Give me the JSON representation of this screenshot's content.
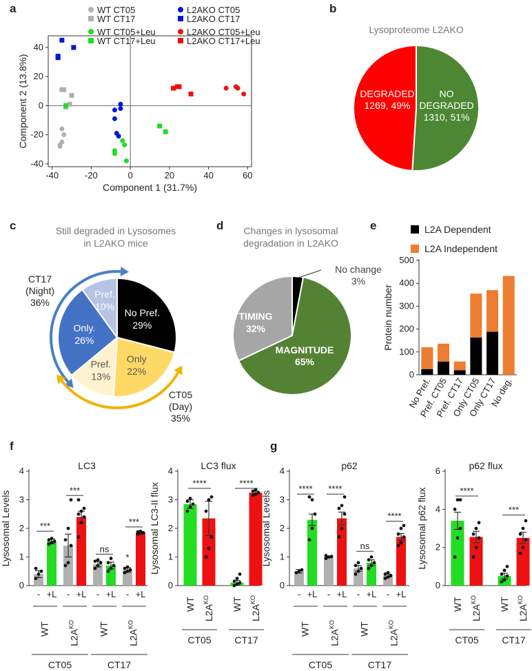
{
  "colors": {
    "wt": "#b0b0b0",
    "ko": "#0018d6",
    "wt_leu": "#22dd22",
    "ko_leu": "#ee1111",
    "degraded": "#ff0000",
    "not_degraded": "#4d8733",
    "black": "#000000",
    "pref_night": "#b5c4e3",
    "only_night": "#4472c4",
    "pref_day": "#fff2cc",
    "only_day": "#ffd966",
    "timing": "#a6a6a6",
    "magnitude": "#548235",
    "l2a_indep": "#ed7d31",
    "arrow_blue": "#4a7fc8",
    "arrow_yellow": "#f0b400"
  },
  "chart_data": [
    {
      "id": "a",
      "panel_label": "a",
      "type": "scatter",
      "title": "",
      "xlabel": "Component 1 (31.7%)",
      "ylabel": "Component 2 (13.8%)",
      "xlim": [
        -42,
        62
      ],
      "ylim": [
        -42,
        48
      ],
      "xticks": [
        -40,
        -20,
        0,
        20,
        40,
        60
      ],
      "yticks": [
        -40,
        -20,
        0,
        20,
        40
      ],
      "xtick_labels": [
        "-40",
        "-20",
        "0",
        "20",
        "40",
        "60"
      ],
      "ytick_labels": [
        "-40",
        "-20",
        "0",
        "20",
        "40"
      ],
      "legend": [
        {
          "label": "WT CT05",
          "color": "wt",
          "marker": "circle"
        },
        {
          "label": "WT CT17",
          "color": "wt",
          "marker": "square"
        },
        {
          "label": "L2AKO CT05",
          "color": "ko",
          "marker": "circle"
        },
        {
          "label": "L2AKO CT17",
          "color": "ko",
          "marker": "square"
        },
        {
          "label": "WT CT05+Leu",
          "color": "wt_leu",
          "marker": "circle"
        },
        {
          "label": "WT CT17+Leu",
          "color": "wt_leu",
          "marker": "square"
        },
        {
          "label": "L2AKO CT05+Leu",
          "color": "ko_leu",
          "marker": "circle"
        },
        {
          "label": "L2AKO CT17+Leu",
          "color": "ko_leu",
          "marker": "square"
        }
      ],
      "series": [
        {
          "name": "WT CT05",
          "color": "wt",
          "marker": "circle",
          "points": [
            [
              -35,
              -16
            ],
            [
              -34,
              -20
            ],
            [
              -35,
              -25
            ],
            [
              -36,
              -27
            ],
            [
              -36,
              -28
            ]
          ]
        },
        {
          "name": "WT CT17",
          "color": "wt",
          "marker": "square",
          "points": [
            [
              -35,
              11
            ],
            [
              -34,
              11
            ],
            [
              -30,
              7
            ],
            [
              -31,
              1
            ],
            [
              -33,
              -1
            ]
          ]
        },
        {
          "name": "L2AKO CT05",
          "color": "ko",
          "marker": "circle",
          "points": [
            [
              -8,
              -3
            ],
            [
              -8,
              -9
            ],
            [
              -5,
              -2
            ],
            [
              -5,
              1
            ],
            [
              -7,
              -19
            ],
            [
              -6,
              -21
            ]
          ]
        },
        {
          "name": "L2AKO CT17",
          "color": "ko",
          "marker": "square",
          "points": [
            [
              -37,
              33
            ],
            [
              -37,
              34
            ],
            [
              -35,
              45
            ],
            [
              -29,
              40
            ]
          ]
        },
        {
          "name": "WT CT05+Leu",
          "color": "wt_leu",
          "marker": "circle",
          "points": [
            [
              -4,
              -24
            ],
            [
              -3,
              -27
            ],
            [
              -8,
              -31
            ],
            [
              -8,
              -33
            ],
            [
              -2,
              -38
            ]
          ]
        },
        {
          "name": "WT CT17+Leu",
          "color": "wt_leu",
          "marker": "square",
          "points": [
            [
              -33,
              0
            ],
            [
              15,
              -14
            ],
            [
              18,
              -18
            ]
          ]
        },
        {
          "name": "L2AKO CT05+Leu",
          "color": "ko_leu",
          "marker": "circle",
          "points": [
            [
              49,
              12
            ],
            [
              54,
              13
            ],
            [
              55,
              12
            ],
            [
              58,
              8
            ]
          ]
        },
        {
          "name": "L2AKO CT17+Leu",
          "color": "ko_leu",
          "marker": "square",
          "points": [
            [
              22,
              12
            ],
            [
              25,
              13
            ],
            [
              24,
              13
            ],
            [
              31,
              8
            ]
          ]
        }
      ]
    },
    {
      "id": "b",
      "panel_label": "b",
      "type": "pie",
      "title": "Lysoproteome L2AKO",
      "slices": [
        {
          "label": "NO\nDEGRADED",
          "value_text": "1310, 51%",
          "value": 51,
          "color": "not_degraded"
        },
        {
          "label": "DEGRADED",
          "value_text": "1269, 49%",
          "value": 49,
          "color": "degraded"
        }
      ]
    },
    {
      "id": "c",
      "panel_label": "c",
      "type": "pie",
      "title": "Still degraded in Lysosomes\nin L2AKO mice",
      "slices": [
        {
          "label": "No Pref.",
          "pct": "29%",
          "value": 29,
          "color": "black",
          "text_color": "#ffffff"
        },
        {
          "label": "Only",
          "pct": "22%",
          "value": 22,
          "color": "only_day",
          "text_color": "#555555"
        },
        {
          "label": "Pref.",
          "pct": "13%",
          "value": 13,
          "color": "pref_day",
          "text_color": "#555555"
        },
        {
          "label": "Only.",
          "pct": "26%",
          "value": 26,
          "color": "only_night",
          "text_color": "#ffffff"
        },
        {
          "label": "Pref.",
          "pct": "10%",
          "value": 10,
          "color": "pref_night",
          "text_color": "#ffffff"
        }
      ],
      "annotations": {
        "night_label": "CT17\n(Night)\n36%",
        "day_label": "CT05\n(Day)\n35%"
      }
    },
    {
      "id": "d",
      "panel_label": "d",
      "type": "pie",
      "title": "Changes in lysosomal\ndegradation in  L2AKO",
      "slices": [
        {
          "label": "No change",
          "pct": "3%",
          "value": 3,
          "color": "black"
        },
        {
          "label": "MAGNITUDE",
          "pct": "65%",
          "value": 65,
          "color": "magnitude"
        },
        {
          "label": "TIMING",
          "pct": "32%",
          "value": 32,
          "color": "timing"
        }
      ]
    },
    {
      "id": "e",
      "panel_label": "e",
      "type": "bar",
      "stacked": true,
      "ylabel": "Protein number",
      "ylim": [
        0,
        500
      ],
      "yticks": [
        0,
        100,
        200,
        300,
        400,
        500
      ],
      "categories": [
        "No Pref.",
        "Pref. CT05",
        "Pref. CT17",
        "Only CT05",
        "Only CT17",
        "No deg."
      ],
      "series": [
        {
          "name": "L2A Dependent",
          "color": "black",
          "values": [
            25,
            58,
            20,
            163,
            188,
            0
          ]
        },
        {
          "name": "L2A Independent",
          "color": "l2a_indep",
          "values": [
            95,
            78,
            38,
            192,
            182,
            432
          ]
        }
      ]
    },
    {
      "id": "f",
      "panel_label": "f",
      "type": "bar",
      "title": "LC3",
      "ylabel": "Lysosomal Levels",
      "ylim": [
        0,
        4
      ],
      "yticks": [
        0,
        1,
        2,
        3,
        4
      ],
      "categories": [
        "-",
        "+L",
        "-",
        "+L",
        "-",
        "+L",
        "-",
        "+L"
      ],
      "values": [
        0.4,
        1.55,
        1.4,
        2.4,
        0.75,
        0.7,
        0.55,
        1.85
      ],
      "errors": [
        0.12,
        0.08,
        0.4,
        0.2,
        0.1,
        0.12,
        0.08,
        0.04
      ],
      "bar_colors": [
        "wt",
        "wt_leu",
        "wt",
        "ko_leu",
        "wt",
        "wt_leu",
        "wt",
        "ko_leu"
      ],
      "points": [
        [
          0.25,
          0.4,
          0.5,
          0.6
        ],
        [
          1.45,
          1.5,
          1.55,
          1.6,
          1.65
        ],
        [
          0.7,
          0.8,
          1.4,
          1.6,
          2.0,
          3.0
        ],
        [
          1.7,
          2.2,
          2.4,
          2.5,
          2.6,
          2.7,
          3.0
        ],
        [
          0.6,
          0.7,
          0.8,
          0.85,
          0.9
        ],
        [
          0.5,
          0.6,
          0.7,
          0.8,
          0.95
        ],
        [
          0.45,
          0.5,
          0.55,
          0.6,
          0.65
        ],
        [
          1.8,
          1.83,
          1.85,
          1.88,
          1.9
        ]
      ],
      "brackets": [
        {
          "from": 0,
          "to": 1,
          "y": 1.9,
          "label": "***"
        },
        {
          "from": 2,
          "to": 3,
          "y": 3.15,
          "label": "***"
        },
        {
          "from": 4,
          "to": 5,
          "y": 1.1,
          "label": "ns"
        },
        {
          "from": 6,
          "to": 7,
          "y": 2.05,
          "label": "***"
        }
      ],
      "extra_marks": [
        {
          "bar": 6,
          "y": 1.0,
          "label": "*"
        }
      ],
      "group_labels": [
        "WT",
        "L2A",
        "WT",
        "L2A"
      ],
      "ko_superscript": "KO",
      "time_labels": [
        "CT05",
        "CT17"
      ]
    },
    {
      "id": "f2",
      "type": "bar",
      "title": "LC3 flux",
      "ylabel": "Lysosomal LC3-II flux",
      "ylim": [
        0,
        4
      ],
      "yticks": [
        0,
        1,
        2,
        3,
        4
      ],
      "categories": [
        "WT",
        "L2A",
        "WT",
        "L2A"
      ],
      "ko_superscript": "KO",
      "values": [
        2.85,
        2.35,
        0.1,
        3.25
      ],
      "errors": [
        0.15,
        0.6,
        0.08,
        0.05
      ],
      "bar_colors": [
        "wt_leu",
        "ko_leu",
        "wt_leu",
        "ko_leu"
      ],
      "points": [
        [
          2.6,
          2.75,
          2.85,
          2.95,
          3.05
        ],
        [
          1.0,
          1.3,
          1.7,
          2.6,
          3.0,
          3.1
        ],
        [
          0.0,
          0.05,
          0.1,
          0.15,
          0.25,
          0.4
        ],
        [
          3.15,
          3.2,
          3.25,
          3.3,
          3.35
        ]
      ],
      "brackets": [
        {
          "from": 0,
          "to": 1,
          "y": 3.4,
          "label": "****"
        },
        {
          "from": 2,
          "to": 3,
          "y": 3.4,
          "label": "****"
        }
      ],
      "time_labels": [
        "CT05",
        "CT17"
      ]
    },
    {
      "id": "g",
      "panel_label": "g",
      "type": "bar",
      "title": "p62",
      "ylabel": "Lysosomal Levels",
      "ylim": [
        0,
        4
      ],
      "yticks": [
        0,
        1,
        2,
        3,
        4
      ],
      "categories": [
        "-",
        "+L",
        "-",
        "+L",
        "-",
        "+L",
        "-",
        "+L"
      ],
      "values": [
        0.5,
        2.3,
        1.0,
        2.35,
        0.6,
        0.8,
        0.35,
        1.7
      ],
      "errors": [
        0.06,
        0.2,
        0.03,
        0.22,
        0.1,
        0.1,
        0.05,
        0.12
      ],
      "bar_colors": [
        "wt",
        "wt_leu",
        "wt",
        "ko_leu",
        "wt",
        "wt_leu",
        "wt",
        "ko_leu"
      ],
      "points": [
        [
          0.45,
          0.5,
          0.55
        ],
        [
          1.6,
          2.0,
          2.5,
          3.1,
          3.0
        ],
        [
          0.95,
          1.0,
          1.02,
          1.05
        ],
        [
          1.7,
          2.0,
          2.5,
          2.7,
          2.8,
          3.1
        ],
        [
          0.4,
          0.5,
          0.6,
          0.7,
          0.8
        ],
        [
          0.6,
          0.7,
          0.8,
          0.9,
          1.0
        ],
        [
          0.25,
          0.3,
          0.35,
          0.4,
          0.45
        ],
        [
          1.4,
          1.5,
          1.7,
          1.8,
          2.0,
          2.1
        ]
      ],
      "brackets": [
        {
          "from": 0,
          "to": 1,
          "y": 3.2,
          "label": "****"
        },
        {
          "from": 2,
          "to": 3,
          "y": 3.2,
          "label": "****"
        },
        {
          "from": 4,
          "to": 5,
          "y": 1.2,
          "label": "ns"
        },
        {
          "from": 6,
          "to": 7,
          "y": 2.25,
          "label": "****"
        }
      ],
      "group_labels": [
        "WT",
        "L2A",
        "WT",
        "L2A"
      ],
      "ko_superscript": "KO",
      "time_labels": [
        "CT05",
        "CT17"
      ]
    },
    {
      "id": "g2",
      "type": "bar",
      "title": "p62 flux",
      "ylabel": "Lysosomal p62 flux",
      "ylim": [
        0,
        6
      ],
      "yticks": [
        0,
        2,
        4,
        6
      ],
      "categories": [
        "WT",
        "L2A",
        "WT",
        "L2A"
      ],
      "ko_superscript": "KO",
      "values": [
        3.4,
        2.55,
        0.5,
        2.5
      ],
      "errors": [
        0.45,
        0.3,
        0.15,
        0.3
      ],
      "bar_colors": [
        "wt_leu",
        "ko_leu",
        "wt_leu",
        "ko_leu"
      ],
      "points": [
        [
          1.5,
          2.5,
          3.0,
          4.0,
          4.5,
          4.5
        ],
        [
          1.5,
          2.0,
          2.5,
          2.7,
          3.0,
          3.3
        ],
        [
          0.2,
          0.3,
          0.5,
          0.6,
          0.8,
          1.0
        ],
        [
          1.7,
          2.0,
          2.4,
          2.7,
          3.0,
          3.4
        ]
      ],
      "brackets": [
        {
          "from": 0,
          "to": 1,
          "y": 4.7,
          "label": "****"
        },
        {
          "from": 2,
          "to": 3,
          "y": 3.7,
          "label": "***"
        }
      ],
      "time_labels": [
        "CT05",
        "CT17"
      ]
    }
  ]
}
